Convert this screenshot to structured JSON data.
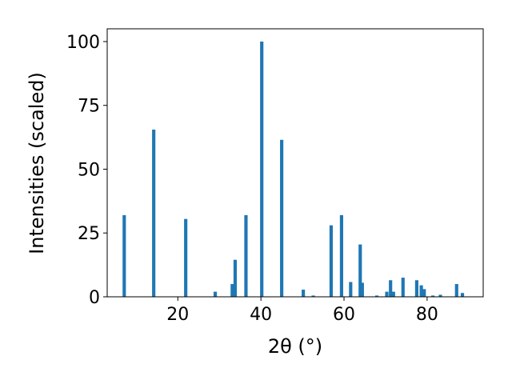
{
  "chart_data": {
    "type": "bar",
    "title": "",
    "xlabel": "2θ (°)",
    "ylabel": "Intensities (scaled)",
    "xlim": [
      3.0,
      93.5
    ],
    "ylim": [
      0,
      105
    ],
    "x_ticks": [
      20,
      40,
      60,
      80
    ],
    "y_ticks": [
      0,
      25,
      50,
      75,
      100
    ],
    "grid": false,
    "bar_color": "#1f77b4",
    "bar_width": 0.8,
    "peaks": [
      {
        "x": 7.1,
        "y": 32
      },
      {
        "x": 14.2,
        "y": 65.5
      },
      {
        "x": 21.9,
        "y": 30.5
      },
      {
        "x": 29.0,
        "y": 2
      },
      {
        "x": 33.1,
        "y": 5
      },
      {
        "x": 33.8,
        "y": 14.5
      },
      {
        "x": 36.4,
        "y": 32
      },
      {
        "x": 40.2,
        "y": 100
      },
      {
        "x": 45.0,
        "y": 61.5
      },
      {
        "x": 50.2,
        "y": 2.8
      },
      {
        "x": 52.6,
        "y": 0.5
      },
      {
        "x": 56.9,
        "y": 28
      },
      {
        "x": 59.4,
        "y": 32
      },
      {
        "x": 61.6,
        "y": 5.8
      },
      {
        "x": 63.9,
        "y": 20.5
      },
      {
        "x": 64.4,
        "y": 5.5
      },
      {
        "x": 67.9,
        "y": 0.5
      },
      {
        "x": 70.3,
        "y": 2
      },
      {
        "x": 71.2,
        "y": 6.5
      },
      {
        "x": 71.9,
        "y": 2
      },
      {
        "x": 74.2,
        "y": 7.5
      },
      {
        "x": 77.5,
        "y": 6.5
      },
      {
        "x": 78.6,
        "y": 4.5
      },
      {
        "x": 79.3,
        "y": 3
      },
      {
        "x": 81.4,
        "y": 0.5
      },
      {
        "x": 83.2,
        "y": 0.8
      },
      {
        "x": 87.1,
        "y": 5
      },
      {
        "x": 88.5,
        "y": 1.5
      }
    ]
  }
}
